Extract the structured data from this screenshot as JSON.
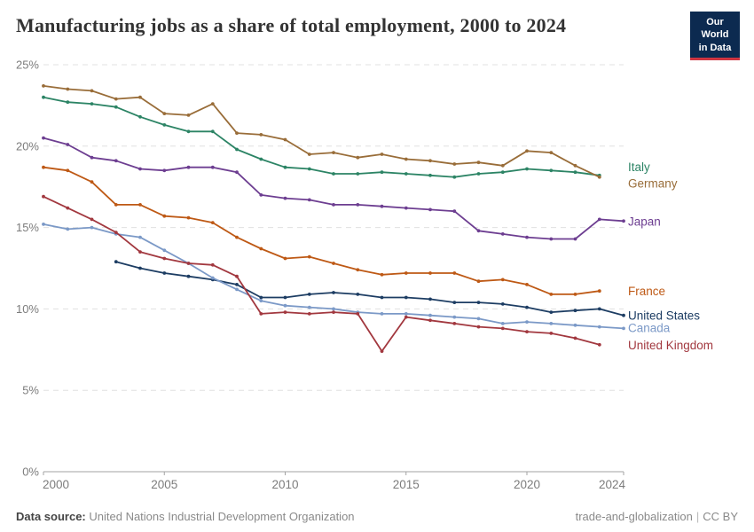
{
  "header": {
    "title": "Manufacturing jobs as a share of total employment, 2000 to 2024",
    "logo": {
      "line1": "Our World",
      "line2": "in Data",
      "bg_color": "#0C2A50",
      "accent_color": "#CE3541"
    }
  },
  "footer": {
    "source_label": "Data source:",
    "source_value": "United Nations Industrial Development Organization",
    "right_slug": "trade-and-globalization",
    "separator": "|",
    "right_license": "CC BY"
  },
  "chart_data": {
    "type": "line",
    "title": "Manufacturing jobs as a share of total employment, 2000 to 2024",
    "xlabel": "",
    "ylabel": "",
    "xlim": [
      2000,
      2024
    ],
    "ylim": [
      0,
      25
    ],
    "x_ticks": [
      2000,
      2005,
      2010,
      2015,
      2020,
      2024
    ],
    "y_ticks": [
      0,
      5,
      10,
      15,
      20,
      25
    ],
    "y_tick_suffix": "%",
    "grid": "horizontal-dashed",
    "legend_position": "right-of-line-ends",
    "years": [
      2000,
      2001,
      2002,
      2003,
      2004,
      2005,
      2006,
      2007,
      2008,
      2009,
      2010,
      2011,
      2012,
      2013,
      2014,
      2015,
      2016,
      2017,
      2018,
      2019,
      2020,
      2021,
      2022,
      2023,
      2024
    ],
    "series": [
      {
        "name": "Italy",
        "color": "#2C8465",
        "start_year": 2000,
        "label_dy": -9,
        "values": [
          23.0,
          22.7,
          22.6,
          22.4,
          21.8,
          21.3,
          20.9,
          20.9,
          19.8,
          19.2,
          18.7,
          18.6,
          18.3,
          18.3,
          18.4,
          18.3,
          18.2,
          18.1,
          18.3,
          18.4,
          18.6,
          18.5,
          18.4,
          18.2
        ]
      },
      {
        "name": "Germany",
        "color": "#996D39",
        "start_year": 2000,
        "label_dy": 8,
        "values": [
          23.7,
          23.5,
          23.4,
          22.9,
          23.0,
          22.0,
          21.9,
          22.6,
          20.8,
          20.7,
          20.4,
          19.5,
          19.6,
          19.3,
          19.5,
          19.2,
          19.1,
          18.9,
          19.0,
          18.8,
          19.7,
          19.6,
          18.8,
          18.1
        ]
      },
      {
        "name": "Japan",
        "color": "#6D3E91",
        "start_year": 2000,
        "label_dy": 1,
        "values": [
          20.5,
          20.1,
          19.3,
          19.1,
          18.6,
          18.5,
          18.7,
          18.7,
          18.4,
          17.0,
          16.8,
          16.7,
          16.4,
          16.4,
          16.3,
          16.2,
          16.1,
          16.0,
          14.8,
          14.6,
          14.4,
          14.3,
          14.3,
          15.5,
          15.4
        ]
      },
      {
        "name": "France",
        "color": "#BE5915",
        "start_year": 2000,
        "label_dy": 1,
        "values": [
          18.7,
          18.5,
          17.8,
          16.4,
          16.4,
          15.7,
          15.6,
          15.3,
          14.4,
          13.7,
          13.1,
          13.2,
          12.8,
          12.4,
          12.1,
          12.2,
          12.2,
          12.2,
          11.7,
          11.8,
          11.5,
          10.9,
          10.9,
          11.1
        ]
      },
      {
        "name": "United States",
        "color": "#1D3D63",
        "start_year": 2003,
        "label_dy": 1,
        "values": [
          12.9,
          12.5,
          12.2,
          12.0,
          11.8,
          11.5,
          10.7,
          10.7,
          10.9,
          11.0,
          10.9,
          10.7,
          10.7,
          10.6,
          10.4,
          10.4,
          10.3,
          10.1,
          9.8,
          9.9,
          10.0,
          9.6
        ]
      },
      {
        "name": "Canada",
        "color": "#7B99C7",
        "start_year": 2000,
        "label_dy": 0,
        "values": [
          15.2,
          14.9,
          15.0,
          14.6,
          14.4,
          13.6,
          12.8,
          11.9,
          11.2,
          10.5,
          10.2,
          10.1,
          10.0,
          9.8,
          9.7,
          9.7,
          9.6,
          9.5,
          9.4,
          9.1,
          9.2,
          9.1,
          9.0,
          8.9,
          8.8
        ]
      },
      {
        "name": "United Kingdom",
        "color": "#A2383F",
        "start_year": 2000,
        "label_dy": 1,
        "values": [
          16.9,
          16.2,
          15.5,
          14.7,
          13.5,
          13.1,
          12.8,
          12.7,
          12.0,
          9.7,
          9.8,
          9.7,
          9.8,
          9.7,
          7.4,
          9.5,
          9.3,
          9.1,
          8.9,
          8.8,
          8.6,
          8.5,
          8.2,
          7.8
        ]
      }
    ]
  }
}
